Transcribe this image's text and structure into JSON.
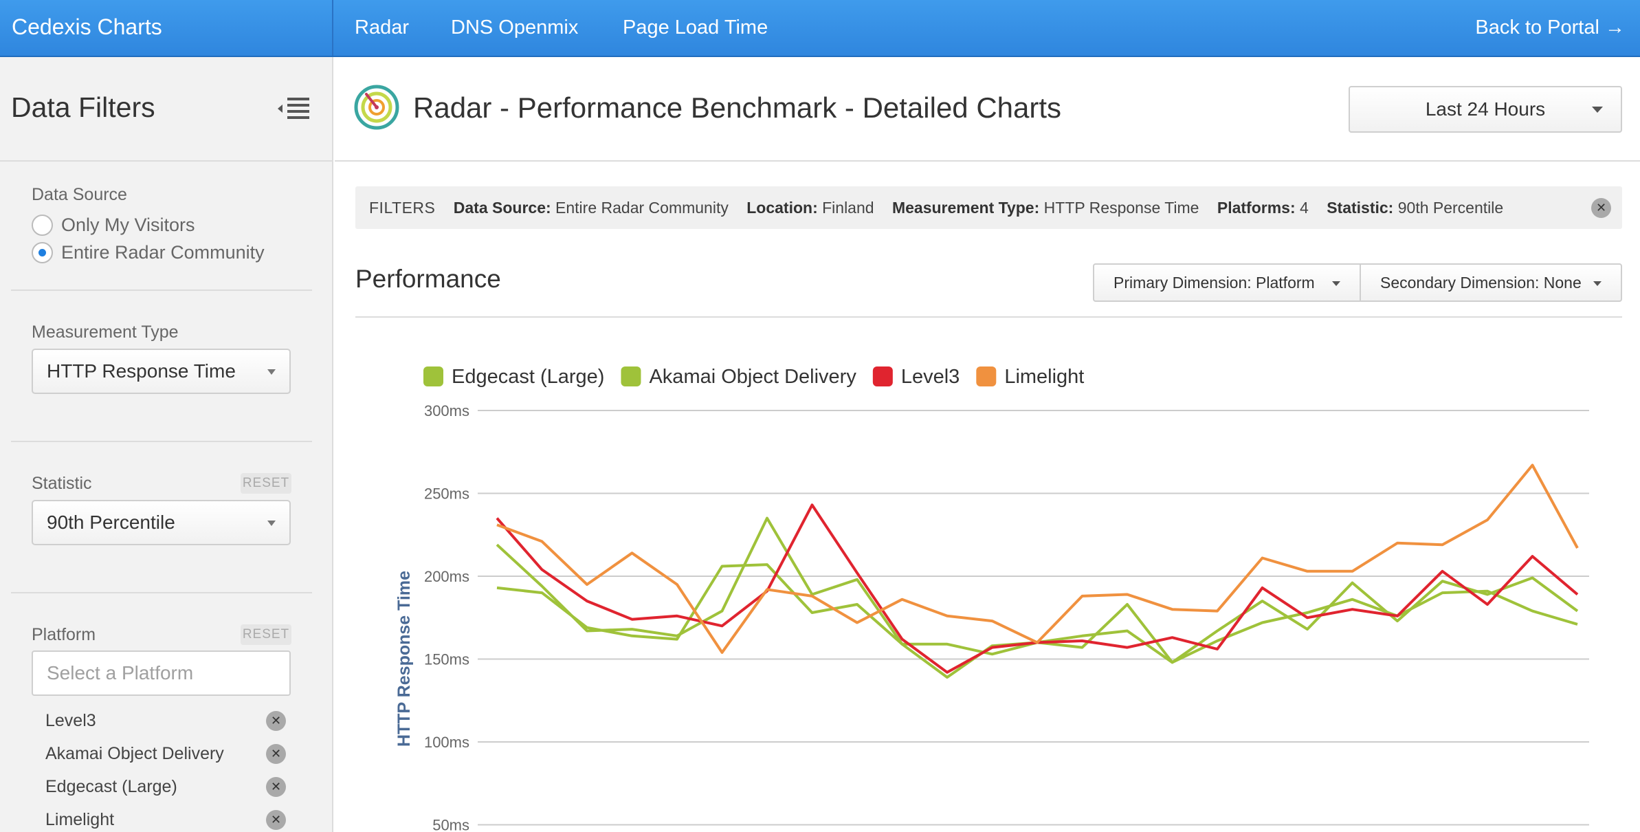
{
  "app": {
    "brand": "Cedexis Charts",
    "back_label": "Back to Portal →"
  },
  "nav": {
    "items": [
      "Radar",
      "DNS Openmix",
      "Page Load Time"
    ]
  },
  "sidebar": {
    "title": "Data Filters",
    "data_source": {
      "label": "Data Source",
      "options": [
        "Only My Visitors",
        "Entire Radar Community"
      ],
      "selected": "Entire Radar Community"
    },
    "measurement_type": {
      "label": "Measurement Type",
      "value": "HTTP Response Time"
    },
    "statistic": {
      "label": "Statistic",
      "reset": "RESET",
      "value": "90th Percentile"
    },
    "platform": {
      "label": "Platform",
      "reset": "RESET",
      "placeholder": "Select a Platform",
      "selected": [
        "Level3",
        "Akamai Object Delivery",
        "Edgecast (Large)",
        "Limelight"
      ]
    }
  },
  "main": {
    "title": "Radar - Performance Benchmark - Detailed Charts",
    "time_range": "Last 24 Hours",
    "filters": {
      "label": "FILTERS",
      "items": [
        {
          "key": "Data Source:",
          "value": "Entire Radar Community"
        },
        {
          "key": "Location:",
          "value": "Finland"
        },
        {
          "key": "Measurement Type:",
          "value": "HTTP Response Time"
        },
        {
          "key": "Platforms:",
          "value": "4"
        },
        {
          "key": "Statistic:",
          "value": "90th Percentile"
        }
      ]
    },
    "performance": {
      "title": "Performance",
      "primary_dimension": "Primary Dimension: Platform",
      "secondary_dimension": "Secondary Dimension: None"
    }
  },
  "chart_data": {
    "type": "line",
    "ylabel": "HTTP Response Time",
    "yticks": [
      "300ms",
      "250ms",
      "200ms",
      "150ms",
      "100ms",
      "50ms"
    ],
    "ylim": [
      50,
      300
    ],
    "grid": true,
    "legend_position": "top-left",
    "series": [
      {
        "name": "Edgecast (Large)",
        "color": "#9fc23a",
        "values": [
          193,
          190,
          169,
          164,
          162,
          206,
          207,
          178,
          183,
          159,
          159,
          153,
          160,
          164,
          167,
          148,
          167,
          185,
          168,
          196,
          173,
          197,
          189,
          199,
          179
        ]
      },
      {
        "name": "Akamai Object Delivery",
        "color": "#9fc23a",
        "values": [
          219,
          194,
          167,
          168,
          164,
          179,
          235,
          189,
          198,
          159,
          139,
          158,
          160,
          157,
          183,
          148,
          161,
          172,
          178,
          186,
          176,
          190,
          191,
          179,
          171
        ]
      },
      {
        "name": "Level3",
        "color": "#e0242f",
        "values": [
          235,
          204,
          185,
          174,
          176,
          170,
          191,
          243,
          202,
          162,
          142,
          157,
          160,
          161,
          157,
          163,
          156,
          193,
          175,
          180,
          176,
          203,
          183,
          212,
          189
        ]
      },
      {
        "name": "Limelight",
        "color": "#f0913f",
        "values": [
          231,
          221,
          195,
          214,
          195,
          154,
          192,
          188,
          172,
          186,
          176,
          173,
          160,
          188,
          189,
          180,
          179,
          211,
          203,
          203,
          220,
          219,
          234,
          267,
          217
        ]
      }
    ]
  }
}
